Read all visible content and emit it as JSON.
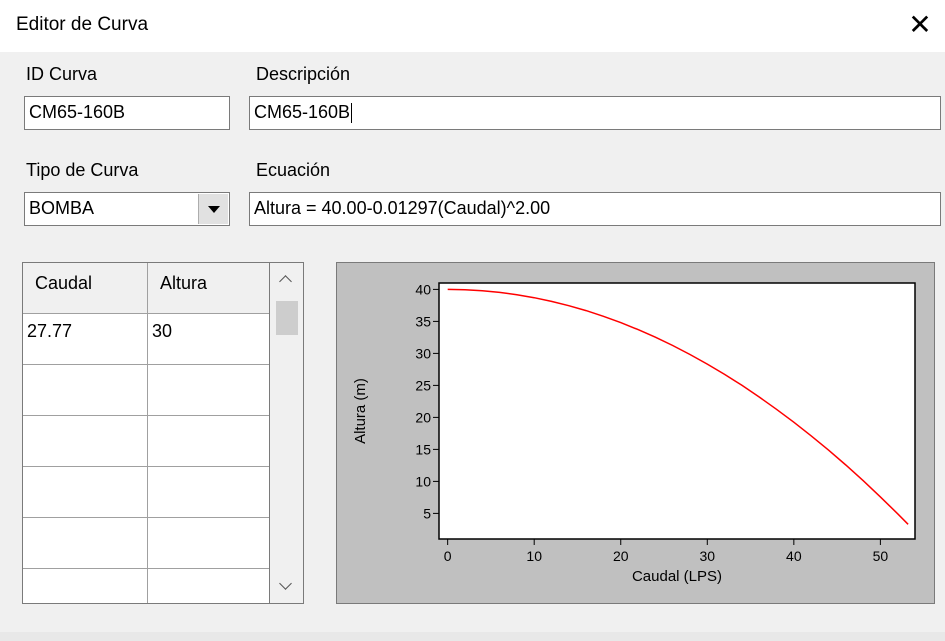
{
  "window": {
    "title": "Editor de Curva"
  },
  "form": {
    "id_label": "ID Curva",
    "id_value": "CM65-160B",
    "desc_label": "Descripción",
    "desc_value": "CM65-160B",
    "type_label": "Tipo de Curva",
    "type_value": "BOMBA",
    "eq_label": "Ecuación",
    "eq_value": "Altura = 40.00-0.01297(Caudal)^2.00"
  },
  "table": {
    "headers": [
      "Caudal",
      "Altura"
    ],
    "rows": [
      [
        "27.77",
        "30"
      ],
      [
        "",
        ""
      ],
      [
        "",
        ""
      ],
      [
        "",
        ""
      ],
      [
        "",
        ""
      ],
      [
        "",
        ""
      ]
    ]
  },
  "chart_data": {
    "type": "line",
    "xlabel": "Caudal (LPS)",
    "ylabel": "Altura (m)",
    "xlim": [
      -1,
      54
    ],
    "ylim": [
      1,
      41
    ],
    "xticks": [
      0,
      10,
      20,
      30,
      40,
      50
    ],
    "yticks": [
      5,
      10,
      15,
      20,
      25,
      30,
      35,
      40
    ],
    "series": [
      {
        "color": "#ff0000",
        "x": [
          0,
          2,
          4,
          6,
          8,
          10,
          12,
          14,
          16,
          18,
          20,
          22,
          24,
          26,
          28,
          30,
          32,
          34,
          36,
          38,
          40,
          42,
          44,
          46,
          48,
          50,
          52,
          53.2
        ],
        "y": [
          40.0,
          39.95,
          39.79,
          39.53,
          39.17,
          38.7,
          38.13,
          37.46,
          36.68,
          35.8,
          34.81,
          33.72,
          32.53,
          31.23,
          29.83,
          28.33,
          26.72,
          25.01,
          23.19,
          21.27,
          19.25,
          17.12,
          14.89,
          12.56,
          10.12,
          7.58,
          4.93,
          3.29
        ]
      }
    ],
    "grid": false,
    "background": "#c0c0c0",
    "plot_background": "#ffffff"
  }
}
